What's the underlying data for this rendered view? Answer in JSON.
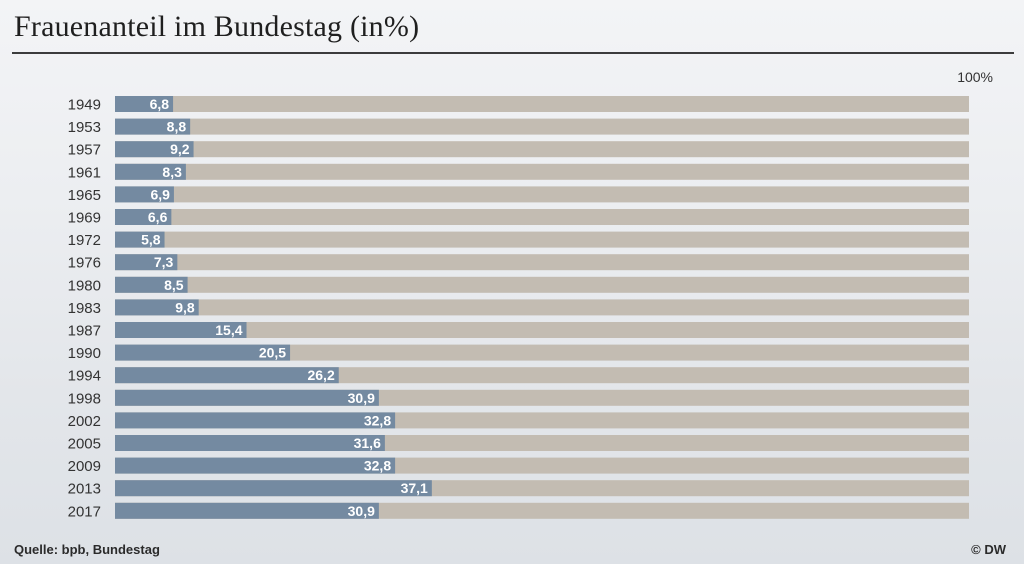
{
  "chart_data": {
    "type": "bar",
    "orientation": "horizontal",
    "title": "Frauenanteil im Bundestag (in%)",
    "xlabel": "",
    "ylabel": "",
    "xlim": [
      0,
      100
    ],
    "scale_max_label": "100%",
    "categories": [
      "1949",
      "1953",
      "1957",
      "1961",
      "1965",
      "1969",
      "1972",
      "1976",
      "1980",
      "1983",
      "1987",
      "1990",
      "1994",
      "1998",
      "2002",
      "2005",
      "2009",
      "2013",
      "2017"
    ],
    "values": [
      6.8,
      8.8,
      9.2,
      8.3,
      6.9,
      6.6,
      5.8,
      7.3,
      8.5,
      9.8,
      15.4,
      20.5,
      26.2,
      30.9,
      32.8,
      31.6,
      32.8,
      37.1,
      30.9
    ],
    "value_labels": [
      "6,8",
      "8,8",
      "9,2",
      "8,3",
      "6,9",
      "6,6",
      "5,8",
      "7,3",
      "8,5",
      "9,8",
      "15,4",
      "20,5",
      "26,2",
      "30,9",
      "32,8",
      "31,6",
      "32,8",
      "37,1",
      "30,9"
    ],
    "colors": {
      "value_bar": "#748aa1",
      "background_bar": "#c3bcb2",
      "label_text": "#ffffff",
      "year_text": "#333333"
    }
  },
  "footer": {
    "source": "Quelle: bpb, Bundestag",
    "credit": "© DW"
  }
}
